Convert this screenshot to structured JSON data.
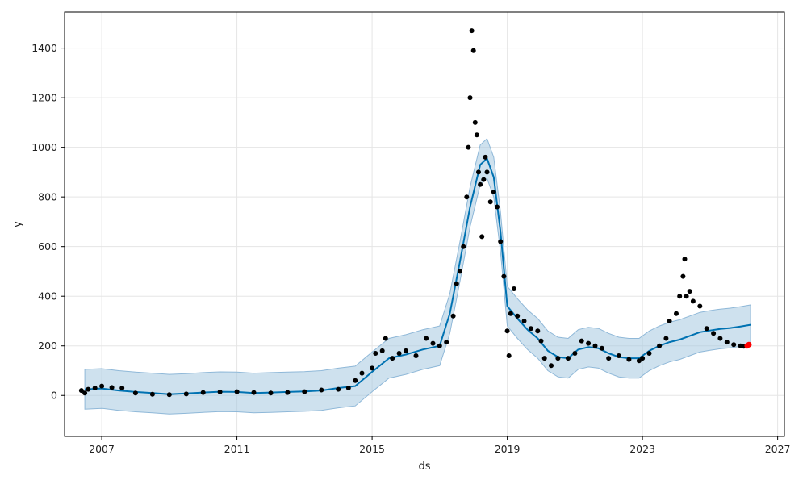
{
  "chart_data": {
    "type": "line",
    "xlabel": "ds",
    "ylabel": "y",
    "xlim": [
      2005.9,
      2027.2
    ],
    "ylim": [
      -165,
      1545
    ],
    "x_ticks": [
      2007,
      2011,
      2015,
      2019,
      2023,
      2027
    ],
    "y_ticks": [
      0,
      200,
      400,
      600,
      800,
      1000,
      1200,
      1400
    ],
    "x_tick_labels": [
      "2007",
      "2011",
      "2015",
      "2019",
      "2023",
      "2027"
    ],
    "y_tick_labels": [
      "0",
      "200",
      "400",
      "600",
      "800",
      "1000",
      "1200",
      "1400"
    ],
    "grid": true,
    "colors": {
      "observed": "#000000",
      "forecast": "#0072B2",
      "interval_fill": "#a6c8e0",
      "future_points": "#ff0000"
    },
    "forecast_x": [
      2006.5,
      2007.0,
      2007.5,
      2008.0,
      2008.5,
      2009.0,
      2009.5,
      2010.0,
      2010.5,
      2011.0,
      2011.5,
      2012.0,
      2012.5,
      2013.0,
      2013.5,
      2014.0,
      2014.5,
      2015.0,
      2015.5,
      2016.0,
      2016.5,
      2017.0,
      2017.3,
      2017.6,
      2017.9,
      2018.2,
      2018.4,
      2018.6,
      2018.8,
      2019.0,
      2019.3,
      2019.6,
      2019.9,
      2020.2,
      2020.5,
      2020.8,
      2021.1,
      2021.4,
      2021.7,
      2022.0,
      2022.3,
      2022.6,
      2022.9,
      2023.2,
      2023.5,
      2023.8,
      2024.1,
      2024.4,
      2024.7,
      2025.0,
      2025.3,
      2025.6,
      2025.9,
      2026.2
    ],
    "forecast_y": [
      25,
      28,
      20,
      14,
      10,
      5,
      8,
      12,
      15,
      14,
      10,
      12,
      14,
      16,
      20,
      30,
      38,
      95,
      150,
      165,
      185,
      200,
      330,
      540,
      760,
      930,
      955,
      880,
      660,
      360,
      310,
      265,
      230,
      180,
      155,
      150,
      185,
      195,
      190,
      170,
      155,
      150,
      150,
      180,
      200,
      215,
      225,
      240,
      255,
      262,
      268,
      272,
      278,
      285
    ],
    "interval_width": 160,
    "observed": [
      [
        2006.4,
        20
      ],
      [
        2006.5,
        10
      ],
      [
        2006.6,
        25
      ],
      [
        2006.8,
        30
      ],
      [
        2007.0,
        38
      ],
      [
        2007.3,
        32
      ],
      [
        2007.6,
        30
      ],
      [
        2008.0,
        10
      ],
      [
        2008.5,
        5
      ],
      [
        2009.0,
        3
      ],
      [
        2009.5,
        6
      ],
      [
        2010.0,
        12
      ],
      [
        2010.5,
        14
      ],
      [
        2011.0,
        15
      ],
      [
        2011.5,
        12
      ],
      [
        2012.0,
        10
      ],
      [
        2012.5,
        12
      ],
      [
        2013.0,
        15
      ],
      [
        2013.5,
        22
      ],
      [
        2014.0,
        25
      ],
      [
        2014.3,
        30
      ],
      [
        2014.5,
        60
      ],
      [
        2014.7,
        90
      ],
      [
        2015.0,
        110
      ],
      [
        2015.1,
        170
      ],
      [
        2015.3,
        180
      ],
      [
        2015.4,
        230
      ],
      [
        2015.6,
        150
      ],
      [
        2015.8,
        170
      ],
      [
        2016.0,
        180
      ],
      [
        2016.3,
        160
      ],
      [
        2016.6,
        230
      ],
      [
        2016.8,
        210
      ],
      [
        2017.0,
        200
      ],
      [
        2017.2,
        215
      ],
      [
        2017.4,
        320
      ],
      [
        2017.5,
        450
      ],
      [
        2017.6,
        500
      ],
      [
        2017.7,
        600
      ],
      [
        2017.8,
        800
      ],
      [
        2017.85,
        1000
      ],
      [
        2017.9,
        1200
      ],
      [
        2017.95,
        1470
      ],
      [
        2018.0,
        1390
      ],
      [
        2018.05,
        1100
      ],
      [
        2018.1,
        1050
      ],
      [
        2018.15,
        900
      ],
      [
        2018.2,
        850
      ],
      [
        2018.25,
        640
      ],
      [
        2018.3,
        870
      ],
      [
        2018.35,
        960
      ],
      [
        2018.4,
        900
      ],
      [
        2018.5,
        780
      ],
      [
        2018.6,
        820
      ],
      [
        2018.7,
        760
      ],
      [
        2018.8,
        620
      ],
      [
        2018.9,
        480
      ],
      [
        2019.0,
        260
      ],
      [
        2019.05,
        160
      ],
      [
        2019.1,
        330
      ],
      [
        2019.2,
        430
      ],
      [
        2019.3,
        320
      ],
      [
        2019.5,
        300
      ],
      [
        2019.7,
        270
      ],
      [
        2019.9,
        260
      ],
      [
        2020.0,
        220
      ],
      [
        2020.1,
        150
      ],
      [
        2020.3,
        120
      ],
      [
        2020.5,
        150
      ],
      [
        2020.8,
        150
      ],
      [
        2021.0,
        170
      ],
      [
        2021.2,
        220
      ],
      [
        2021.4,
        210
      ],
      [
        2021.6,
        200
      ],
      [
        2021.8,
        190
      ],
      [
        2022.0,
        150
      ],
      [
        2022.3,
        160
      ],
      [
        2022.6,
        145
      ],
      [
        2022.9,
        140
      ],
      [
        2023.0,
        150
      ],
      [
        2023.2,
        170
      ],
      [
        2023.5,
        200
      ],
      [
        2023.7,
        230
      ],
      [
        2023.8,
        300
      ],
      [
        2024.0,
        330
      ],
      [
        2024.1,
        400
      ],
      [
        2024.2,
        480
      ],
      [
        2024.25,
        550
      ],
      [
        2024.3,
        400
      ],
      [
        2024.4,
        420
      ],
      [
        2024.5,
        380
      ],
      [
        2024.7,
        360
      ],
      [
        2024.9,
        270
      ],
      [
        2025.1,
        250
      ],
      [
        2025.3,
        230
      ],
      [
        2025.5,
        215
      ],
      [
        2025.7,
        205
      ],
      [
        2025.9,
        200
      ],
      [
        2026.0,
        198
      ]
    ],
    "future_points": [
      [
        2026.1,
        200
      ],
      [
        2026.15,
        205
      ]
    ]
  }
}
